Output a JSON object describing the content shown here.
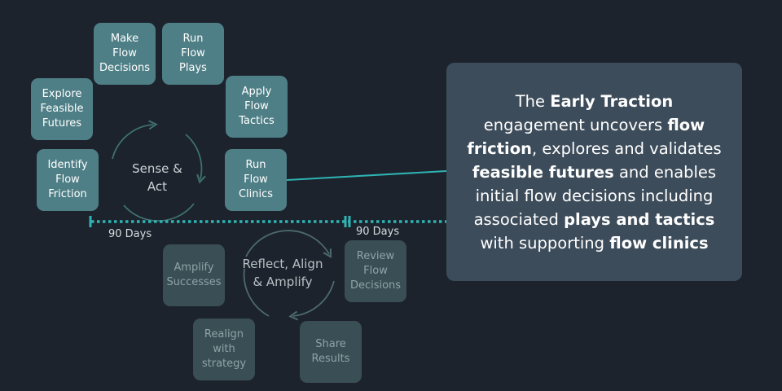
{
  "cycle1": {
    "label": "Sense &\nAct",
    "boxes": [
      {
        "id": "make-flow-decisions",
        "text": "Make\nFlow\nDecisions"
      },
      {
        "id": "run-flow-plays",
        "text": "Run\nFlow\nPlays"
      },
      {
        "id": "explore-feasible-futures",
        "text": "Explore\nFeasible\nFutures"
      },
      {
        "id": "apply-flow-tactics",
        "text": "Apply\nFlow\nTactics"
      },
      {
        "id": "identify-flow-friction",
        "text": "Identify\nFlow\nFriction"
      },
      {
        "id": "run-flow-clinics",
        "text": "Run\nFlow\nClinics"
      }
    ]
  },
  "cycle2": {
    "label": "Reflect, Align\n& Amplify",
    "boxes": [
      {
        "id": "amplify-successes",
        "text": "Amplify\nSuccesses"
      },
      {
        "id": "review-flow-decisions",
        "text": "Review\nFlow\nDecisions"
      },
      {
        "id": "realign-with-strategy",
        "text": "Realign\nwith\nstrategy"
      },
      {
        "id": "share-results",
        "text": "Share\nResults"
      }
    ]
  },
  "timeline": {
    "label_left": "90 Days",
    "label_right": "90 Days"
  },
  "callout": {
    "segments": [
      {
        "text": "The ",
        "bold": false
      },
      {
        "text": "Early Traction",
        "bold": true
      },
      {
        "text": " engagement uncovers ",
        "bold": false
      },
      {
        "text": "flow friction",
        "bold": true
      },
      {
        "text": ", explores and validates ",
        "bold": false
      },
      {
        "text": "feasible futures",
        "bold": true
      },
      {
        "text": " and enables initial flow decisions including  associated ",
        "bold": false
      },
      {
        "text": "plays and tactics",
        "bold": true
      },
      {
        "text": " with supporting ",
        "bold": false
      },
      {
        "text": "flow clinics",
        "bold": true
      }
    ]
  },
  "colors": {
    "background": "#1c232c",
    "active_box": "#4f7f86",
    "dim_box": "#3a4e55",
    "callout_bg": "#3d4c5a",
    "timeline": "#2fb3b3"
  }
}
